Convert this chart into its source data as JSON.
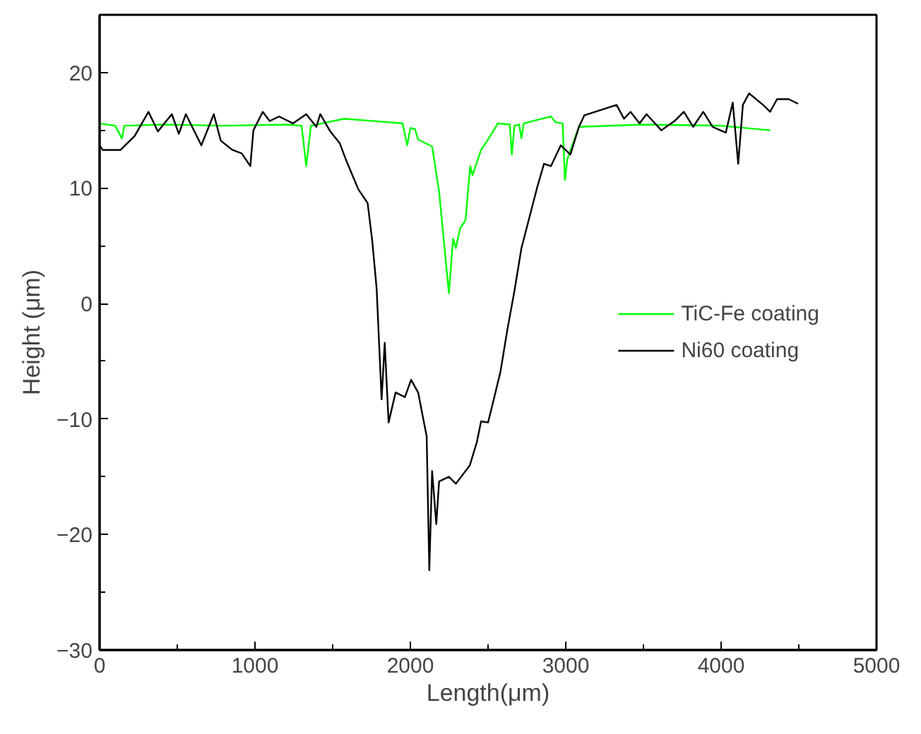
{
  "chart_data": {
    "type": "line",
    "xlabel": "Length(μm)",
    "ylabel": "Height (μm)",
    "xlim": [
      0,
      5000
    ],
    "ylim": [
      -30,
      25
    ],
    "xticks": [
      0,
      {
        "value": 500,
        "label": null
      },
      1000,
      {
        "value": 1500,
        "label": null
      },
      2000,
      {
        "value": 2500,
        "label": null
      },
      3000,
      {
        "value": 3500,
        "label": null
      },
      4000,
      {
        "value": 4500,
        "label": null
      },
      5000
    ],
    "yticks": [
      -30,
      {
        "value": -25,
        "label": null
      },
      -20,
      {
        "value": -15,
        "label": null
      },
      -10,
      {
        "value": -5,
        "label": null
      },
      0,
      {
        "value": 5,
        "label": null
      },
      10,
      {
        "value": 15,
        "label": null
      },
      20,
      {
        "value": 25,
        "label": null
      }
    ],
    "grid": false,
    "legend": "right",
    "line_style": "solid",
    "marker": "none",
    "series": [
      {
        "name": "TiC-Fe coating",
        "color": "#00ff00",
        "x": [
          0,
          100,
          144,
          160,
          400,
          800,
          1200,
          1300,
          1330,
          1360,
          1575,
          1950,
          1980,
          2000,
          2030,
          2050,
          2140,
          2185,
          2248,
          2275,
          2293,
          2320,
          2355,
          2385,
          2400,
          2455,
          2500,
          2563,
          2640,
          2653,
          2670,
          2700,
          2715,
          2730,
          2905,
          2935,
          2980,
          2995,
          3010,
          3085,
          3500,
          4000,
          4316
        ],
        "values": [
          15.6,
          15.4,
          14.3,
          15.4,
          15.5,
          15.4,
          15.5,
          15.4,
          11.9,
          15.4,
          16.0,
          15.6,
          13.7,
          15.2,
          15.1,
          14.2,
          13.6,
          9.7,
          0.9,
          5.6,
          4.8,
          6.5,
          7.2,
          11.9,
          11.1,
          13.3,
          14.2,
          15.6,
          15.5,
          12.9,
          15.4,
          15.5,
          14.3,
          15.6,
          16.2,
          15.7,
          15.6,
          10.7,
          12.5,
          15.3,
          15.5,
          15.4,
          15.0
        ]
      },
      {
        "name": "Ni60 coating",
        "color": "#000000",
        "x": [
          0,
          20,
          135,
          225,
          315,
          375,
          465,
          510,
          555,
          655,
          735,
          780,
          855,
          915,
          970,
          990,
          1050,
          1095,
          1155,
          1245,
          1330,
          1395,
          1420,
          1485,
          1545,
          1590,
          1665,
          1725,
          1755,
          1783,
          1815,
          1835,
          1860,
          1905,
          1965,
          2005,
          2050,
          2105,
          2122,
          2140,
          2167,
          2185,
          2248,
          2293,
          2383,
          2428,
          2455,
          2500,
          2535,
          2580,
          2625,
          2670,
          2715,
          2815,
          2860,
          2905,
          2968,
          3030,
          3085,
          3120,
          3327,
          3375,
          3417,
          3475,
          3520,
          3615,
          3700,
          3760,
          3820,
          3885,
          3945,
          4030,
          4075,
          4110,
          4140,
          4180,
          4270,
          4315,
          4360,
          4435,
          4495
        ],
        "values": [
          13.7,
          13.3,
          13.3,
          14.5,
          16.6,
          14.9,
          16.4,
          14.7,
          16.4,
          13.7,
          16.4,
          14.1,
          13.3,
          13.0,
          11.9,
          15.0,
          16.6,
          15.8,
          16.2,
          15.6,
          16.4,
          15.3,
          16.4,
          14.9,
          13.9,
          12.3,
          9.9,
          8.7,
          5.4,
          1.3,
          -8.3,
          -3.4,
          -10.3,
          -7.7,
          -8.1,
          -6.6,
          -7.7,
          -11.5,
          -23.1,
          -14.5,
          -19.1,
          -15.4,
          -15.0,
          -15.6,
          -14.0,
          -12.0,
          -10.2,
          -10.3,
          -8.4,
          -5.9,
          -2.2,
          1.1,
          4.8,
          10.0,
          12.1,
          11.9,
          13.7,
          12.9,
          15.3,
          16.3,
          17.2,
          16.0,
          16.6,
          15.6,
          16.4,
          15.0,
          15.8,
          16.6,
          15.3,
          16.6,
          15.3,
          14.8,
          17.4,
          12.1,
          17.2,
          18.2,
          17.2,
          16.6,
          17.7,
          17.7,
          17.3
        ]
      }
    ]
  }
}
